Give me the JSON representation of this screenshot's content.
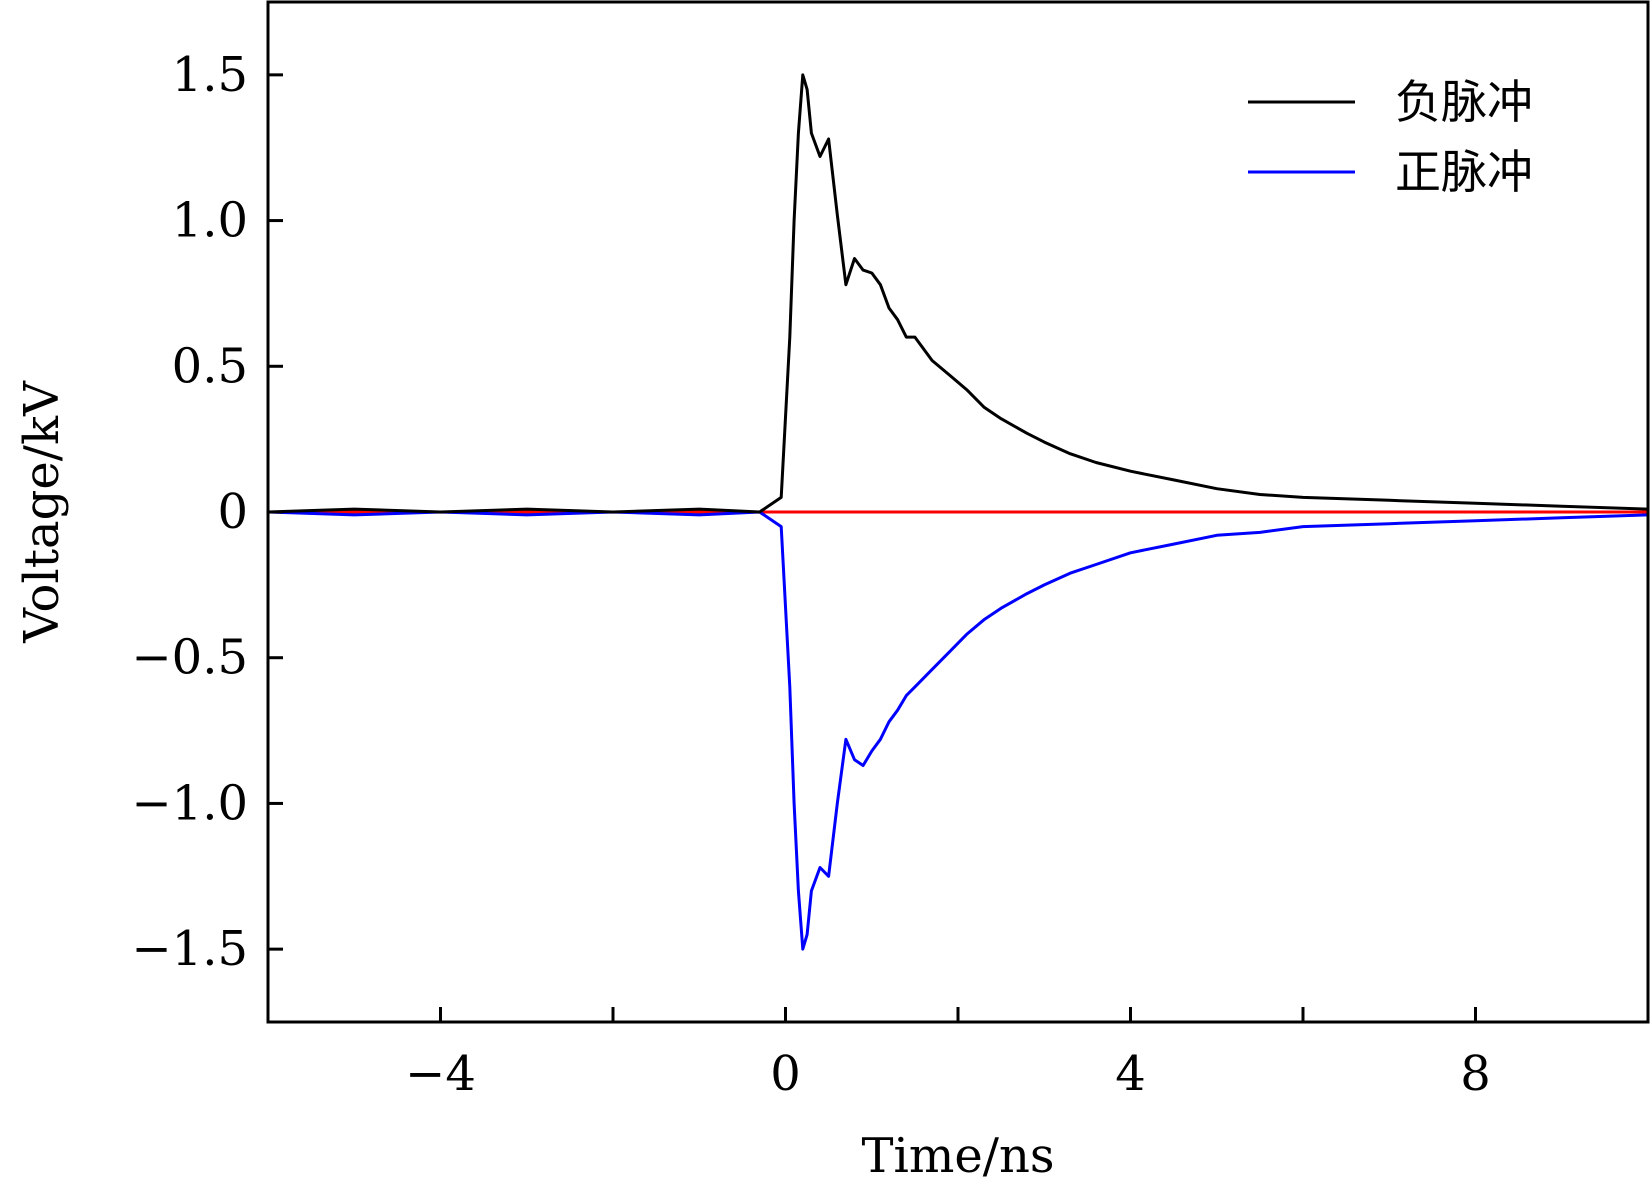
{
  "chart_data": {
    "type": "line",
    "title": "",
    "xlabel": "Time/ns",
    "ylabel": "Voltage/kV",
    "xlim": [
      -6,
      10
    ],
    "ylim": [
      -1.75,
      1.75
    ],
    "x_ticks": [
      -4,
      0,
      4,
      8
    ],
    "x_tick_labels": [
      "−4",
      "0",
      "4",
      "8"
    ],
    "x_minor_ticks": [
      -2,
      2,
      6
    ],
    "y_ticks": [
      1.5,
      1.0,
      0.5,
      0,
      -0.5,
      -1.0,
      -1.5
    ],
    "y_tick_labels": [
      "1.5",
      "1.0",
      "0.5",
      "0",
      "−0.5",
      "−1.0",
      "−1.5"
    ],
    "grid": false,
    "legend_position": "top-right",
    "series": [
      {
        "name": "负脉冲",
        "color": "#000000",
        "x": [
          -6,
          -5,
          -4,
          -3,
          -2,
          -1,
          -0.3,
          -0.05,
          0.05,
          0.1,
          0.15,
          0.2,
          0.25,
          0.3,
          0.4,
          0.5,
          0.6,
          0.7,
          0.8,
          0.9,
          1.0,
          1.1,
          1.2,
          1.3,
          1.4,
          1.5,
          1.7,
          1.9,
          2.1,
          2.3,
          2.5,
          2.8,
          3.0,
          3.3,
          3.6,
          4.0,
          4.5,
          5.0,
          5.5,
          6.0,
          7.0,
          8.0,
          9.0,
          10.0
        ],
        "y": [
          0,
          0.01,
          0,
          0.01,
          0,
          0.01,
          0,
          0.05,
          0.6,
          1.0,
          1.3,
          1.5,
          1.45,
          1.3,
          1.22,
          1.28,
          1.02,
          0.78,
          0.87,
          0.83,
          0.82,
          0.78,
          0.7,
          0.66,
          0.6,
          0.6,
          0.52,
          0.47,
          0.42,
          0.36,
          0.32,
          0.27,
          0.24,
          0.2,
          0.17,
          0.14,
          0.11,
          0.08,
          0.06,
          0.05,
          0.04,
          0.03,
          0.02,
          0.01
        ]
      },
      {
        "name": "正脉冲",
        "color": "#0000ff",
        "x": [
          -6,
          -5,
          -4,
          -3,
          -2,
          -1,
          -0.3,
          -0.05,
          0.05,
          0.1,
          0.15,
          0.2,
          0.25,
          0.3,
          0.4,
          0.5,
          0.6,
          0.7,
          0.8,
          0.9,
          1.0,
          1.1,
          1.2,
          1.3,
          1.4,
          1.5,
          1.7,
          1.9,
          2.1,
          2.3,
          2.5,
          2.8,
          3.0,
          3.3,
          3.6,
          4.0,
          4.5,
          5.0,
          5.5,
          6.0,
          7.0,
          8.0,
          9.0,
          10.0
        ],
        "y": [
          0,
          -0.01,
          0,
          -0.01,
          0,
          -0.01,
          0,
          -0.05,
          -0.6,
          -1.0,
          -1.3,
          -1.5,
          -1.45,
          -1.3,
          -1.22,
          -1.25,
          -1.0,
          -0.78,
          -0.85,
          -0.87,
          -0.82,
          -0.78,
          -0.72,
          -0.68,
          -0.63,
          -0.6,
          -0.54,
          -0.48,
          -0.42,
          -0.37,
          -0.33,
          -0.28,
          -0.25,
          -0.21,
          -0.18,
          -0.14,
          -0.11,
          -0.08,
          -0.07,
          -0.05,
          -0.04,
          -0.03,
          -0.02,
          -0.01
        ]
      },
      {
        "color": "#ff0000",
        "x": [
          -6,
          10
        ],
        "y": [
          0,
          0
        ]
      }
    ]
  }
}
